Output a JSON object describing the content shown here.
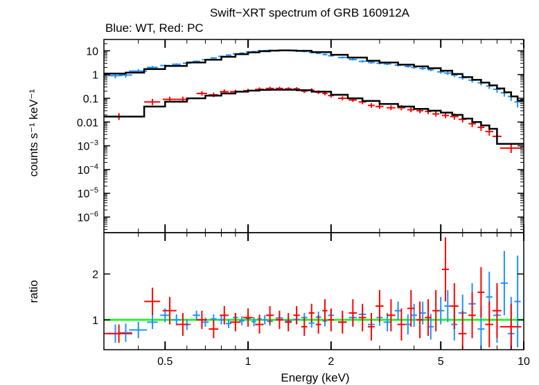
{
  "chart_data": {
    "type": "scatter",
    "title": "Swift−XRT spectrum of GRB 160912A",
    "subtitle": "Blue: WT, Red: PC",
    "xlabel": "Energy (keV)",
    "x_scale": "log",
    "xlim": [
      0.3,
      10
    ],
    "x_ticks": [
      {
        "value": 0.5,
        "label": "0.5"
      },
      {
        "value": 1,
        "label": "1"
      },
      {
        "value": 2,
        "label": "2"
      },
      {
        "value": 5,
        "label": "5"
      },
      {
        "value": 10,
        "label": "10"
      }
    ],
    "colors": {
      "wt": "#1e90ff",
      "pc": "#ff0000",
      "model": "#000000",
      "unity": "#00ff00"
    },
    "panels": [
      {
        "name": "spectrum",
        "ylabel": "counts s⁻¹ keV⁻¹",
        "y_scale": "log",
        "ylim": [
          2.2e-07,
          30
        ],
        "y_ticks": [
          {
            "value": 10,
            "label": "10"
          },
          {
            "value": 1,
            "label": "1"
          },
          {
            "value": 0.1,
            "label": "0.1"
          },
          {
            "value": 0.01,
            "label": "0.01"
          },
          {
            "value": 0.001,
            "base": "10",
            "exp": "−3"
          },
          {
            "value": 0.0001,
            "base": "10",
            "exp": "−4"
          },
          {
            "value": 1e-05,
            "base": "10",
            "exp": "−5"
          },
          {
            "value": 1e-06,
            "base": "10",
            "exp": "−6"
          }
        ],
        "series": [
          {
            "key": "wt",
            "kind": "points",
            "color": "#1e90ff",
            "x": [
              0.33,
              0.36,
              0.4,
              0.45,
              0.5,
              0.55,
              0.6,
              0.65,
              0.7,
              0.75,
              0.8,
              0.85,
              0.9,
              0.95,
              1.0,
              1.05,
              1.1,
              1.15,
              1.2,
              1.3,
              1.4,
              1.5,
              1.6,
              1.7,
              1.8,
              1.9,
              2.0,
              2.2,
              2.4,
              2.6,
              2.8,
              3.0,
              3.2,
              3.5,
              3.8,
              4.0,
              4.3,
              4.6,
              5.0,
              5.3,
              5.6,
              6.0,
              6.5,
              7.0,
              7.5,
              8.0,
              8.5,
              9.0,
              9.5
            ],
            "y": [
              0.9,
              0.95,
              1.4,
              2.0,
              2.4,
              2.7,
              3.0,
              3.6,
              4.2,
              5.0,
              5.8,
              6.6,
              7.4,
              8.0,
              8.8,
              9.2,
              10.0,
              10.2,
              10.4,
              10.5,
              10.6,
              9.8,
              9.4,
              8.5,
              7.8,
              7.0,
              6.2,
              5.2,
              4.3,
              3.6,
              3.2,
              3.0,
              2.8,
              2.5,
              2.2,
              2.0,
              1.8,
              1.6,
              1.3,
              1.15,
              0.95,
              0.75,
              0.58,
              0.45,
              0.33,
              0.24,
              0.17,
              0.12,
              0.07
            ],
            "xerr": [
              0.02,
              0.02,
              0.03,
              0.02,
              0.02,
              0.02,
              0.02,
              0.02,
              0.02,
              0.02,
              0.02,
              0.02,
              0.02,
              0.02,
              0.02,
              0.02,
              0.02,
              0.02,
              0.03,
              0.04,
              0.04,
              0.04,
              0.04,
              0.04,
              0.04,
              0.04,
              0.05,
              0.08,
              0.08,
              0.08,
              0.08,
              0.08,
              0.1,
              0.1,
              0.1,
              0.1,
              0.12,
              0.12,
              0.15,
              0.15,
              0.15,
              0.2,
              0.2,
              0.2,
              0.2,
              0.25,
              0.25,
              0.25,
              0.25
            ],
            "yerr_frac": [
              0.3,
              0.28,
              0.2,
              0.15,
              0.12,
              0.1,
              0.1,
              0.09,
              0.09,
              0.08,
              0.08,
              0.08,
              0.08,
              0.08,
              0.08,
              0.08,
              0.08,
              0.08,
              0.08,
              0.08,
              0.08,
              0.08,
              0.08,
              0.08,
              0.08,
              0.1,
              0.1,
              0.1,
              0.1,
              0.12,
              0.12,
              0.12,
              0.12,
              0.14,
              0.14,
              0.15,
              0.16,
              0.17,
              0.2,
              0.2,
              0.22,
              0.25,
              0.28,
              0.3,
              0.35,
              0.4,
              0.45,
              0.55,
              0.7
            ]
          },
          {
            "key": "pc",
            "kind": "points",
            "color": "#ff0000",
            "x": [
              0.34,
              0.45,
              0.52,
              0.58,
              0.68,
              0.75,
              0.82,
              0.9,
              1.0,
              1.1,
              1.2,
              1.3,
              1.4,
              1.5,
              1.6,
              1.7,
              1.8,
              1.9,
              2.0,
              2.2,
              2.4,
              2.6,
              2.8,
              3.0,
              3.3,
              3.6,
              3.9,
              4.2,
              4.5,
              4.8,
              5.2,
              5.6,
              6.0,
              6.5,
              7.0,
              7.5,
              8.0,
              9.0
            ],
            "y": [
              0.017,
              0.07,
              0.09,
              0.09,
              0.16,
              0.14,
              0.19,
              0.19,
              0.21,
              0.24,
              0.26,
              0.26,
              0.25,
              0.25,
              0.2,
              0.22,
              0.18,
              0.16,
              0.13,
              0.1,
              0.085,
              0.07,
              0.05,
              0.045,
              0.04,
              0.04,
              0.033,
              0.03,
              0.028,
              0.022,
              0.019,
              0.017,
              0.013,
              0.0085,
              0.006,
              0.004,
              0.0025,
              0.0008
            ],
            "xerr": [
              0.04,
              0.03,
              0.03,
              0.03,
              0.03,
              0.03,
              0.03,
              0.04,
              0.04,
              0.04,
              0.04,
              0.04,
              0.04,
              0.04,
              0.04,
              0.04,
              0.04,
              0.04,
              0.05,
              0.08,
              0.08,
              0.08,
              0.08,
              0.1,
              0.12,
              0.12,
              0.12,
              0.12,
              0.12,
              0.14,
              0.15,
              0.2,
              0.2,
              0.2,
              0.2,
              0.25,
              0.3,
              0.8
            ],
            "yerr_frac": [
              0.4,
              0.35,
              0.3,
              0.3,
              0.25,
              0.25,
              0.25,
              0.2,
              0.2,
              0.2,
              0.18,
              0.18,
              0.18,
              0.18,
              0.2,
              0.2,
              0.2,
              0.2,
              0.22,
              0.22,
              0.22,
              0.25,
              0.25,
              0.25,
              0.25,
              0.28,
              0.28,
              0.28,
              0.3,
              0.3,
              0.3,
              0.35,
              0.35,
              0.4,
              0.45,
              0.5,
              0.55,
              0.6
            ]
          },
          {
            "key": "wt-model",
            "kind": "steps",
            "color": "#000000",
            "x": [
              0.3,
              0.36,
              0.42,
              0.5,
              0.6,
              0.7,
              0.8,
              0.9,
              1.0,
              1.1,
              1.2,
              1.3,
              1.4,
              1.5,
              1.7,
              2.0,
              2.3,
              2.7,
              3.0,
              3.5,
              4.0,
              4.5,
              5.0,
              5.5,
              6.0,
              6.5,
              7.0,
              7.5,
              8.0,
              8.5,
              9.0,
              9.5,
              10.0
            ],
            "y": [
              1.1,
              1.2,
              1.7,
              2.3,
              3.2,
              4.2,
              5.6,
              7.2,
              8.6,
              9.6,
              10.2,
              10.4,
              10.3,
              10.0,
              8.8,
              6.8,
              5.2,
              3.8,
              3.2,
              2.6,
              2.2,
              1.85,
              1.45,
              1.05,
              0.78,
              0.6,
              0.46,
              0.35,
              0.26,
              0.18,
              0.12,
              0.08,
              0.05
            ]
          },
          {
            "key": "pc-model",
            "kind": "steps",
            "color": "#000000",
            "x": [
              0.3,
              0.42,
              0.5,
              0.6,
              0.7,
              0.8,
              0.9,
              1.0,
              1.1,
              1.2,
              1.35,
              1.5,
              1.7,
              2.0,
              2.3,
              2.6,
              3.0,
              3.5,
              4.0,
              4.5,
              5.0,
              5.5,
              6.0,
              6.5,
              7.0,
              7.5,
              8.0,
              10.0
            ],
            "y": [
              0.017,
              0.045,
              0.072,
              0.1,
              0.13,
              0.16,
              0.19,
              0.21,
              0.225,
              0.23,
              0.23,
              0.22,
              0.19,
              0.14,
              0.1,
              0.078,
              0.058,
              0.045,
              0.036,
              0.03,
              0.025,
              0.02,
              0.014,
              0.01,
              0.0072,
              0.0052,
              0.0012,
              0.0012
            ]
          }
        ]
      },
      {
        "name": "ratio",
        "ylabel": "ratio",
        "y_scale": "linear",
        "ylim": [
          0.35,
          2.9
        ],
        "y_ticks": [
          {
            "value": 1,
            "label": "1"
          },
          {
            "value": 2,
            "label": "2"
          }
        ],
        "series": [
          {
            "key": "wt",
            "kind": "points",
            "color": "#1e90ff",
            "x": [
              0.33,
              0.36,
              0.4,
              0.45,
              0.5,
              0.55,
              0.6,
              0.65,
              0.7,
              0.75,
              0.8,
              0.85,
              0.9,
              0.95,
              1.0,
              1.05,
              1.1,
              1.15,
              1.2,
              1.3,
              1.4,
              1.5,
              1.6,
              1.7,
              1.8,
              1.9,
              2.0,
              2.2,
              2.4,
              2.6,
              2.8,
              3.0,
              3.2,
              3.5,
              3.8,
              4.0,
              4.3,
              4.6,
              5.0,
              5.3,
              5.6,
              6.0,
              6.5,
              7.0,
              7.5,
              8.0,
              8.5,
              9.0,
              9.5
            ],
            "y": [
              0.7,
              0.72,
              0.78,
              0.95,
              1.1,
              1.0,
              0.9,
              1.1,
              0.95,
              1.02,
              1.0,
              0.92,
              1.05,
              0.98,
              1.03,
              0.96,
              1.02,
              1.0,
              0.97,
              1.04,
              0.98,
              1.01,
              1.05,
              0.93,
              1.06,
              0.98,
              1.1,
              0.95,
              1.05,
              1.12,
              0.9,
              1.05,
              0.95,
              1.2,
              0.9,
              1.1,
              1.15,
              0.85,
              1.2,
              1.3,
              0.9,
              1.15,
              1.35,
              0.8,
              1.5,
              1.1,
              1.8,
              0.7,
              1.4
            ],
            "xerr": [
              0.02,
              0.02,
              0.03,
              0.02,
              0.02,
              0.02,
              0.02,
              0.02,
              0.02,
              0.02,
              0.02,
              0.02,
              0.02,
              0.02,
              0.02,
              0.02,
              0.02,
              0.02,
              0.03,
              0.04,
              0.04,
              0.04,
              0.04,
              0.04,
              0.04,
              0.04,
              0.05,
              0.08,
              0.08,
              0.08,
              0.08,
              0.08,
              0.1,
              0.1,
              0.1,
              0.1,
              0.12,
              0.12,
              0.15,
              0.15,
              0.15,
              0.2,
              0.2,
              0.2,
              0.2,
              0.25,
              0.25,
              0.25,
              0.25
            ],
            "yerr": [
              0.2,
              0.2,
              0.18,
              0.15,
              0.15,
              0.12,
              0.12,
              0.1,
              0.1,
              0.1,
              0.1,
              0.1,
              0.1,
              0.1,
              0.1,
              0.1,
              0.1,
              0.1,
              0.1,
              0.1,
              0.1,
              0.1,
              0.1,
              0.1,
              0.12,
              0.12,
              0.12,
              0.15,
              0.15,
              0.15,
              0.18,
              0.18,
              0.2,
              0.2,
              0.22,
              0.25,
              0.25,
              0.28,
              0.3,
              0.35,
              0.35,
              0.4,
              0.45,
              0.5,
              0.55,
              0.6,
              0.7,
              0.8,
              1.0
            ]
          },
          {
            "key": "pc",
            "kind": "points",
            "color": "#ff0000",
            "x": [
              0.34,
              0.45,
              0.52,
              0.58,
              0.68,
              0.75,
              0.82,
              0.9,
              1.0,
              1.1,
              1.2,
              1.3,
              1.4,
              1.5,
              1.6,
              1.7,
              1.8,
              1.9,
              2.0,
              2.2,
              2.4,
              2.6,
              2.8,
              3.0,
              3.3,
              3.6,
              3.9,
              4.2,
              4.5,
              4.8,
              5.2,
              5.6,
              6.0,
              6.5,
              7.0,
              7.5,
              8.0,
              9.0
            ],
            "y": [
              0.7,
              1.4,
              1.2,
              0.9,
              1.0,
              0.8,
              1.1,
              0.95,
              1.05,
              0.9,
              1.1,
              1.0,
              0.95,
              1.1,
              0.85,
              1.15,
              0.9,
              1.2,
              1.0,
              0.95,
              1.15,
              1.05,
              0.85,
              1.3,
              1.1,
              0.9,
              1.25,
              1.0,
              1.05,
              1.2,
              2.1,
              1.3,
              0.7,
              1.1,
              1.6,
              0.9,
              1.2,
              0.85
            ],
            "xerr": [
              0.04,
              0.03,
              0.03,
              0.03,
              0.03,
              0.03,
              0.03,
              0.04,
              0.04,
              0.04,
              0.04,
              0.04,
              0.04,
              0.04,
              0.04,
              0.04,
              0.04,
              0.04,
              0.05,
              0.08,
              0.08,
              0.08,
              0.08,
              0.1,
              0.12,
              0.12,
              0.12,
              0.12,
              0.12,
              0.14,
              0.15,
              0.2,
              0.2,
              0.2,
              0.2,
              0.25,
              0.3,
              0.8
            ],
            "yerr": [
              0.2,
              0.3,
              0.3,
              0.25,
              0.2,
              0.2,
              0.2,
              0.2,
              0.2,
              0.2,
              0.2,
              0.2,
              0.2,
              0.2,
              0.2,
              0.2,
              0.2,
              0.25,
              0.25,
              0.25,
              0.3,
              0.3,
              0.3,
              0.35,
              0.35,
              0.35,
              0.4,
              0.4,
              0.4,
              0.45,
              0.7,
              0.5,
              0.5,
              0.5,
              0.55,
              0.5,
              0.6,
              0.5
            ]
          }
        ],
        "reference_line": {
          "y": 1,
          "color": "#00ff00"
        }
      }
    ]
  }
}
